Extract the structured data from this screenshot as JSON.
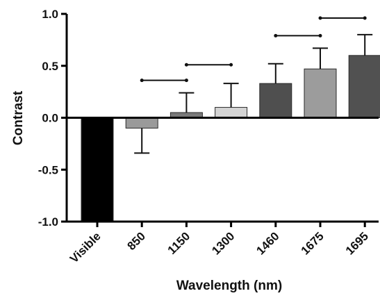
{
  "chart_data": {
    "type": "bar",
    "title": "",
    "xlabel": "Wavelength (nm)",
    "ylabel": "Contrast",
    "ylim": [
      -1.0,
      1.0
    ],
    "yticks": [
      -1.0,
      -0.5,
      0.0,
      0.5,
      1.0
    ],
    "ytick_labels": [
      "-1.0",
      "-0.5",
      "0.0",
      "0.5",
      "1.0"
    ],
    "categories": [
      "Visible",
      "850",
      "1150",
      "1300",
      "1460",
      "1675",
      "1695"
    ],
    "values": [
      -1.0,
      -0.1,
      0.05,
      0.1,
      0.33,
      0.47,
      0.6
    ],
    "error_upper": [
      null,
      null,
      0.24,
      0.33,
      0.52,
      0.67,
      0.8
    ],
    "error_lower": [
      null,
      -0.34,
      null,
      null,
      null,
      null,
      null
    ],
    "bar_colors": [
      "#000000",
      "#9a9a9a",
      "#7a7a7a",
      "#d4d4d4",
      "#4f4f4f",
      "#9c9c9c",
      "#515151"
    ],
    "comparison_brackets": [
      {
        "from": "850",
        "to": "1150",
        "y": 0.36
      },
      {
        "from": "1150",
        "to": "1300",
        "y": 0.51
      },
      {
        "from": "1460",
        "to": "1675",
        "y": 0.79
      },
      {
        "from": "1675",
        "to": "1695",
        "y": 0.96
      }
    ],
    "grid": false,
    "legend": "none"
  }
}
